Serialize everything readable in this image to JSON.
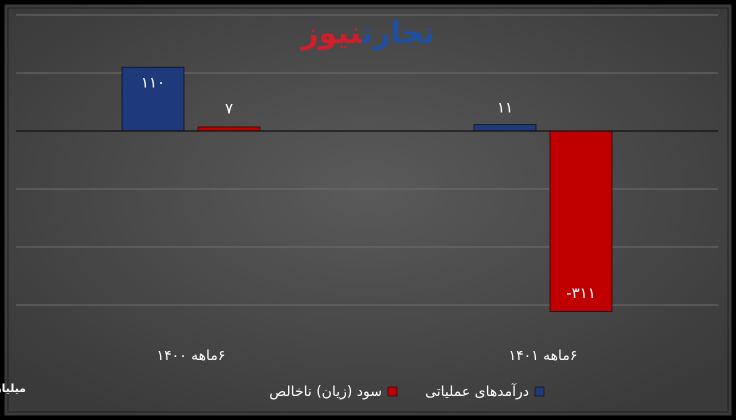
{
  "chart_data": {
    "type": "bar",
    "logo": [
      "تجارت",
      "نیوز"
    ],
    "unit": "میلیارد تومان",
    "categories": [
      "۶ماهه ۱۴۰۰",
      "۶ماهه ۱۴۰۱"
    ],
    "series": [
      {
        "name": "درآمدهای عملیاتی",
        "color": "#1f3a7a",
        "values": [
          110,
          11
        ],
        "value_labels": [
          "۱۱۰",
          "۱۱"
        ]
      },
      {
        "name": "سود (زیان) ناخالص",
        "color": "#c00000",
        "values": [
          7,
          -311
        ],
        "value_labels": [
          "۷",
          "-۳۱۱"
        ]
      }
    ],
    "ylim": [
      -350,
      200
    ],
    "yticks": [
      200,
      100,
      0,
      -100,
      -200,
      -300
    ],
    "grid": true,
    "legend": "bottom"
  }
}
